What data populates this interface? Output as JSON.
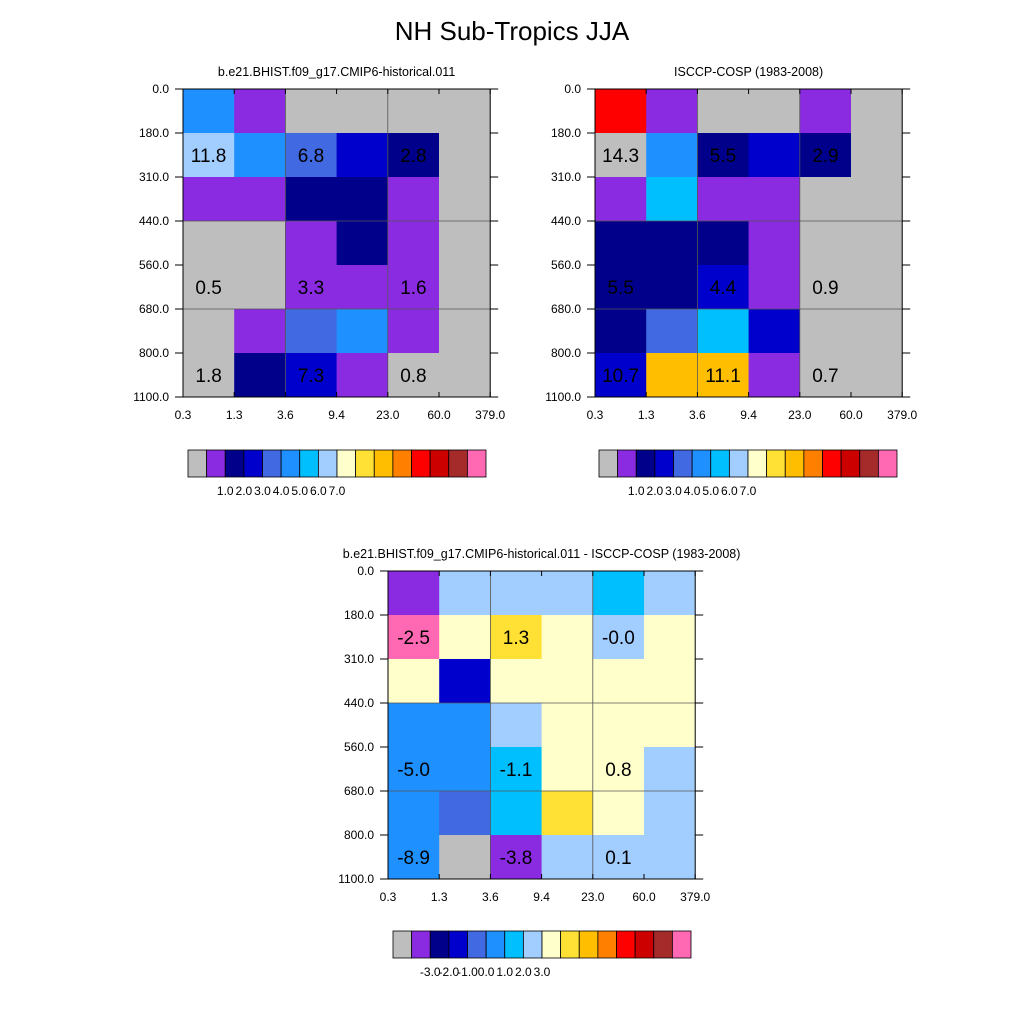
{
  "figure": {
    "title": "NH Sub-Tropics JJA",
    "x_tick_labels": [
      "0.3",
      "1.3",
      "3.6",
      "9.4",
      "23.0",
      "60.0",
      "379.0"
    ],
    "y_tick_labels": [
      "0.0",
      "180.0",
      "310.0",
      "440.0",
      "560.0",
      "680.0",
      "800.0",
      "1100.0"
    ]
  },
  "palettes": {
    "abs": [
      "#bebebe",
      "#8a2be2",
      "#00008b",
      "#0000cd",
      "#4169e1",
      "#1e90ff",
      "#00bfff",
      "#a2cdff",
      "#ffffcc",
      "#ffe135",
      "#ffbe00",
      "#ff8000",
      "#ff0000",
      "#cd0000",
      "#a52a2a",
      "#ff69b4"
    ],
    "diff": [
      "#bebebe",
      "#8a2be2",
      "#00008b",
      "#0000cd",
      "#4169e1",
      "#1e90ff",
      "#00bfff",
      "#a2cdff",
      "#ffffcc",
      "#ffe135",
      "#ffbe00",
      "#ff8000",
      "#ff0000",
      "#cd0000",
      "#a52a2a",
      "#ff69b4"
    ]
  },
  "chart_data": [
    {
      "type": "heatmap",
      "title": "b.e21.BHIST.f09_g17.CMIP6-historical.011",
      "x_tick_labels": [
        "0.3",
        "1.3",
        "3.6",
        "9.4",
        "23.0",
        "60.0",
        "379.0"
      ],
      "y_tick_labels": [
        "0.0",
        "180.0",
        "310.0",
        "440.0",
        "560.0",
        "680.0",
        "800.0",
        "1100.0"
      ],
      "cells": [
        [
          5,
          1,
          0,
          0,
          0,
          0
        ],
        [
          7,
          5,
          4,
          3,
          2,
          0
        ],
        [
          1,
          1,
          2,
          2,
          1,
          0
        ],
        [
          0,
          0,
          1,
          2,
          1,
          0
        ],
        [
          0,
          0,
          1,
          1,
          1,
          0
        ],
        [
          0,
          1,
          4,
          5,
          1,
          0
        ],
        [
          0,
          2,
          3,
          1,
          0,
          0
        ]
      ],
      "annotations": [
        "11.8",
        "6.8",
        "2.8",
        "0.5",
        "3.3",
        "1.6",
        "1.8",
        "7.3",
        "0.8"
      ],
      "colorbar_labels": [
        "1.0",
        "2.0",
        "3.0",
        "4.0",
        "5.0",
        "6.0",
        "7.0"
      ],
      "grid": true
    },
    {
      "type": "heatmap",
      "title": "ISCCP-COSP (1983-2008)",
      "x_tick_labels": [
        "0.3",
        "1.3",
        "3.6",
        "9.4",
        "23.0",
        "60.0",
        "379.0"
      ],
      "y_tick_labels": [
        "0.0",
        "180.0",
        "310.0",
        "440.0",
        "560.0",
        "680.0",
        "800.0",
        "1100.0"
      ],
      "cells": [
        [
          12,
          1,
          0,
          0,
          1,
          0
        ],
        [
          0,
          5,
          2,
          3,
          2,
          0
        ],
        [
          1,
          6,
          1,
          1,
          0,
          0
        ],
        [
          2,
          2,
          2,
          1,
          0,
          0
        ],
        [
          2,
          2,
          3,
          1,
          0,
          0
        ],
        [
          2,
          4,
          6,
          3,
          0,
          0
        ],
        [
          3,
          10,
          10,
          1,
          0,
          0
        ]
      ],
      "annotations": [
        "14.3",
        "5.5",
        "2.9",
        "5.5",
        "4.4",
        "0.9",
        "10.7",
        "11.1",
        "0.7"
      ],
      "colorbar_labels": [
        "1.0",
        "2.0",
        "3.0",
        "4.0",
        "5.0",
        "6.0",
        "7.0"
      ],
      "grid": true
    },
    {
      "type": "heatmap",
      "title": "b.e21.BHIST.f09_g17.CMIP6-historical.011 - ISCCP-COSP (1983-2008)",
      "x_tick_labels": [
        "0.3",
        "1.3",
        "3.6",
        "9.4",
        "23.0",
        "60.0",
        "379.0"
      ],
      "y_tick_labels": [
        "0.0",
        "180.0",
        "310.0",
        "440.0",
        "560.0",
        "680.0",
        "800.0",
        "1100.0"
      ],
      "cells": [
        [
          1,
          7,
          7,
          7,
          6,
          7
        ],
        [
          15,
          8,
          9,
          8,
          7,
          8
        ],
        [
          8,
          3,
          8,
          8,
          8,
          8
        ],
        [
          5,
          5,
          7,
          8,
          8,
          8
        ],
        [
          5,
          5,
          6,
          8,
          8,
          7
        ],
        [
          5,
          4,
          6,
          9,
          8,
          7
        ],
        [
          5,
          0,
          1,
          7,
          7,
          7
        ]
      ],
      "annotations": [
        "-2.5",
        "1.3",
        "-0.0",
        "-5.0",
        "-1.1",
        "0.8",
        "-8.9",
        "-3.8",
        "0.1"
      ],
      "colorbar_labels": [
        "-3.0",
        "-2.0",
        "-1.0",
        "0.0",
        "1.0",
        "2.0",
        "3.0"
      ],
      "grid": true
    }
  ]
}
